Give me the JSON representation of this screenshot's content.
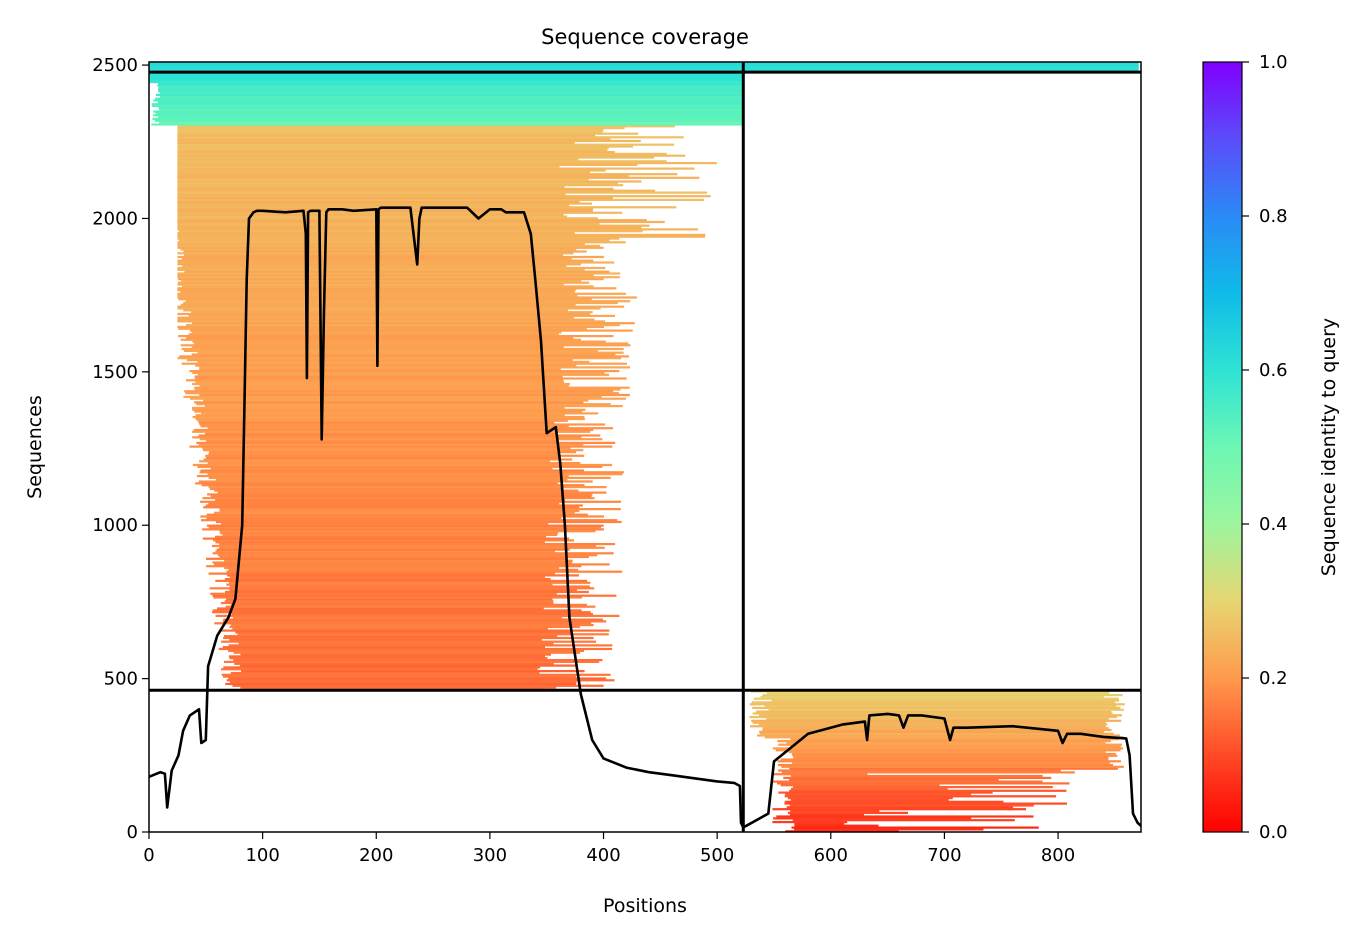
{
  "chart_data": {
    "type": "heatmap",
    "title": "Sequence coverage",
    "xlabel": "Positions",
    "ylabel": "Sequences",
    "xlim": [
      0,
      873
    ],
    "ylim": [
      0,
      2510
    ],
    "xticks": [
      0,
      100,
      200,
      300,
      400,
      500,
      600,
      700,
      800
    ],
    "yticks": [
      0,
      500,
      1000,
      1500,
      2000,
      2500
    ],
    "grid": false,
    "colorbar": {
      "label": "Sequence identity to query",
      "colormap": "rainbow_r",
      "range": [
        0,
        1
      ],
      "ticks": [
        "0.0",
        "0.2",
        "0.4",
        "0.6",
        "0.8",
        "1.0"
      ]
    },
    "chain_boundaries": {
      "position": 523,
      "sequence_lines": [
        462,
        2477
      ]
    },
    "coverage_line": {
      "color": "#000000",
      "x": [
        0,
        10,
        14,
        16,
        20,
        26,
        30,
        36,
        44,
        46,
        50,
        52,
        60,
        70,
        76,
        82,
        84,
        86,
        88,
        92,
        95,
        100,
        120,
        136,
        138,
        139,
        140,
        142,
        150,
        152,
        154,
        156,
        158,
        160,
        170,
        180,
        200,
        201,
        202,
        204,
        210,
        230,
        236,
        238,
        240,
        250,
        280,
        290,
        300,
        310,
        314,
        320,
        330,
        336,
        340,
        345,
        350,
        358,
        362,
        366,
        370,
        380,
        390,
        400,
        420,
        440,
        460,
        480,
        500,
        515,
        520,
        521,
        523,
        528,
        540,
        545,
        550,
        560,
        570,
        580,
        590,
        610,
        630,
        632,
        634,
        650,
        660,
        664,
        668,
        680,
        700,
        705,
        708,
        720,
        760,
        800,
        804,
        808,
        820,
        840,
        860,
        863,
        866,
        870,
        873
      ],
      "y": [
        180,
        195,
        190,
        80,
        200,
        250,
        330,
        380,
        400,
        290,
        300,
        540,
        640,
        700,
        760,
        1000,
        1400,
        1800,
        2000,
        2020,
        2025,
        2025,
        2020,
        2025,
        1950,
        1480,
        2020,
        2025,
        2025,
        1280,
        1700,
        2020,
        2030,
        2030,
        2030,
        2025,
        2030,
        1520,
        2030,
        2035,
        2035,
        2035,
        1850,
        2000,
        2035,
        2035,
        2035,
        2000,
        2030,
        2030,
        2020,
        2020,
        2020,
        1950,
        1800,
        1600,
        1300,
        1320,
        1200,
        1000,
        700,
        450,
        300,
        240,
        210,
        195,
        185,
        175,
        165,
        160,
        150,
        30,
        15,
        25,
        50,
        60,
        230,
        260,
        290,
        320,
        330,
        350,
        360,
        300,
        380,
        385,
        380,
        340,
        380,
        380,
        370,
        300,
        340,
        340,
        345,
        330,
        290,
        320,
        320,
        310,
        305,
        250,
        60,
        30,
        20
      ]
    }
  }
}
